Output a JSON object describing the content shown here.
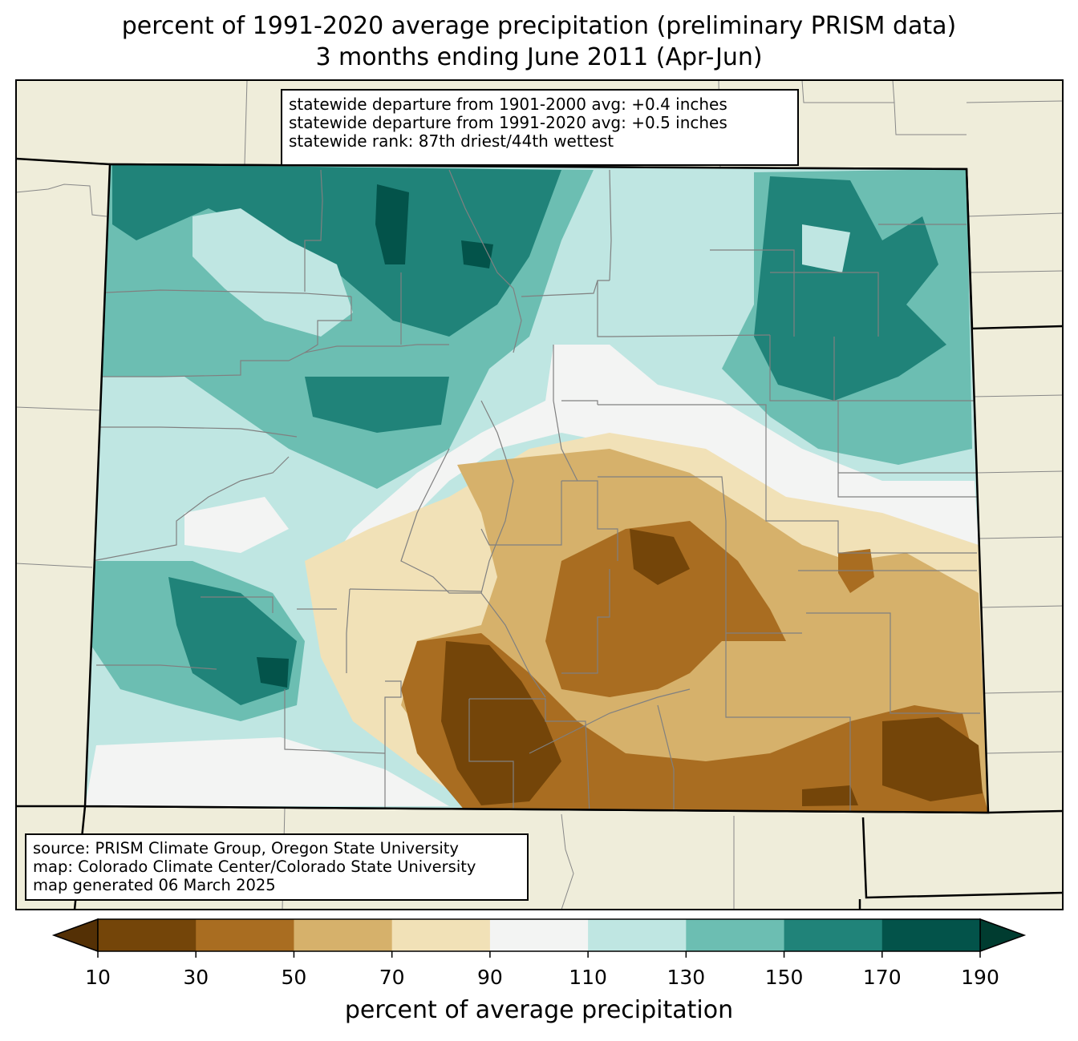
{
  "title": {
    "line1": "percent of 1991-2020 average precipitation (preliminary PRISM data)",
    "line2": "3 months ending June 2011 (Apr-Jun)"
  },
  "stats": {
    "departure_1901_2000": "statewide departure from 1901-2000 avg: +0.4 inches",
    "departure_1991_2020": "statewide departure from 1991-2020 avg: +0.5 inches",
    "rank": "statewide rank: 87th driest/44th wettest"
  },
  "source": {
    "source_line": "source: PRISM Climate Group, Oregon State University",
    "map_line": "map: Colorado Climate Center/Colorado State University",
    "generated_line": "map generated 06 March 2025"
  },
  "colorbar": {
    "title": "percent of average precipitation",
    "ticks": [
      "10",
      "30",
      "50",
      "70",
      "90",
      "110",
      "130",
      "150",
      "170",
      "190"
    ],
    "colors": [
      "#744509",
      "#a96d21",
      "#d6b16b",
      "#f1e1b7",
      "#f3f4f3",
      "#bfe6e2",
      "#6cbeb2",
      "#208379",
      "#03534a"
    ],
    "under_color": "#543005",
    "over_color": "#003c30"
  },
  "map_colors": {
    "background": "#efedda",
    "boundary": "#808080"
  }
}
